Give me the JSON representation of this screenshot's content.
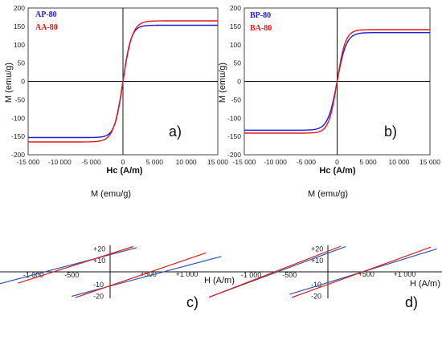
{
  "chart_data": [
    {
      "type": "line",
      "panel_label": "a)",
      "xlabel": "Hc (A/m)",
      "ylabel": "M (emu/g)",
      "xlim": [
        -15000,
        15000
      ],
      "ylim": [
        -200,
        200
      ],
      "xticks": [
        -15000,
        -10000,
        -5000,
        0,
        5000,
        10000,
        15000
      ],
      "xtick_labels": [
        "-15 000",
        "-10 000",
        "-5 000",
        "0",
        "5 000",
        "10 000",
        "15 000"
      ],
      "yticks": [
        -200,
        -150,
        -100,
        -50,
        0,
        50,
        100,
        150,
        200
      ],
      "ytick_labels": [
        "-200",
        "-150",
        "-100",
        "-50",
        "0",
        "50",
        "100",
        "150",
        "200"
      ],
      "legend_position": "top-left",
      "series": [
        {
          "name": "AP-80",
          "color": "#1f1fd6",
          "ms": 153,
          "scale": 1300,
          "x": [
            -15000,
            -10000,
            -5000,
            -3000,
            -1000,
            0,
            1000,
            3000,
            5000,
            10000,
            15000
          ],
          "y": [
            -151,
            -148,
            -138,
            -120,
            -62,
            0,
            62,
            120,
            138,
            148,
            151
          ]
        },
        {
          "name": "AA-80",
          "color": "#e41a1a",
          "ms": 165,
          "scale": 1500,
          "x": [
            -15000,
            -10000,
            -5000,
            -3000,
            -1000,
            0,
            1000,
            3000,
            5000,
            10000,
            15000
          ],
          "y": [
            -163,
            -159,
            -148,
            -128,
            -60,
            0,
            60,
            128,
            148,
            159,
            163
          ]
        }
      ]
    },
    {
      "type": "line",
      "panel_label": "b)",
      "xlabel": "Hc (A/m)",
      "ylabel": "M (emu/g)",
      "xlim": [
        -15000,
        15000
      ],
      "ylim": [
        -200,
        200
      ],
      "xticks": [
        -15000,
        -10000,
        -5000,
        0,
        5000,
        10000,
        15000
      ],
      "xtick_labels": [
        "-15 000",
        "-10 000",
        "-5 000",
        "0",
        "5 000",
        "10 000",
        "15 000"
      ],
      "yticks": [
        -200,
        -150,
        -100,
        -50,
        0,
        50,
        100,
        150,
        200
      ],
      "ytick_labels": [
        "-200",
        "-150",
        "-100",
        "-50",
        "0",
        "50",
        "100",
        "150",
        "200"
      ],
      "legend_position": "top-left",
      "series": [
        {
          "name": "BP-80",
          "color": "#1f1fd6",
          "ms": 133,
          "scale": 1500,
          "x": [
            -15000,
            -10000,
            -5000,
            -3000,
            -1000,
            0,
            1000,
            3000,
            5000,
            10000,
            15000
          ],
          "y": [
            -131,
            -128,
            -118,
            -100,
            -50,
            0,
            50,
            100,
            118,
            128,
            131
          ]
        },
        {
          "name": "BA-80",
          "color": "#e41a1a",
          "ms": 141,
          "scale": 1350,
          "x": [
            -15000,
            -10000,
            -5000,
            -3000,
            -1000,
            0,
            1000,
            3000,
            5000,
            10000,
            15000
          ],
          "y": [
            -139,
            -136,
            -127,
            -109,
            -58,
            0,
            58,
            109,
            127,
            136,
            139
          ]
        }
      ]
    },
    {
      "type": "line",
      "panel_label": "c)",
      "ylabel": "M (emu/g)",
      "xlabel": "H (A/m)",
      "xlim": [
        -1500,
        1500
      ],
      "ylim": [
        -22,
        22
      ],
      "xticks": [
        -1000,
        -500,
        500,
        1000
      ],
      "xtick_labels": [
        "-1 000",
        "-500",
        "+500",
        "+1 000"
      ],
      "yticks": [
        20,
        10,
        -10,
        -20
      ],
      "ytick_labels": [
        "+20",
        "+10",
        "-10",
        "-20"
      ],
      "series": [
        {
          "name": "",
          "color": "#2b57b5",
          "segments": [
            {
              "x": [
                -1450,
                350
              ],
              "y": [
                -10.3,
                20.4
              ]
            },
            {
              "x": [
                -500,
                1450
              ],
              "y": [
                -20.6,
                13.0
              ]
            }
          ]
        },
        {
          "name": "",
          "color": "#e41a1a",
          "segments": [
            {
              "x": [
                -1200,
                300
              ],
              "y": [
                -9.5,
                21.3
              ]
            },
            {
              "x": [
                -450,
                1250
              ],
              "y": [
                -21.7,
                16.0
              ]
            }
          ]
        }
      ]
    },
    {
      "type": "line",
      "panel_label": "d)",
      "ylabel": "M (emu/g)",
      "xlabel": "H (A/m)",
      "xlim": [
        -1500,
        1500
      ],
      "ylim": [
        -22,
        22
      ],
      "xticks": [
        -1000,
        -500,
        500,
        1000
      ],
      "xtick_labels": [
        "-1 000",
        "-500",
        "+500",
        "+1 000"
      ],
      "yticks": [
        20,
        10,
        -10,
        -20
      ],
      "ytick_labels": [
        "+20",
        "+10",
        "-10",
        "-20"
      ],
      "series": [
        {
          "name": "",
          "color": "#2b57b5",
          "segments": [
            {
              "x": [
                -1550,
                230
              ],
              "y": [
                -21.4,
                21.2
              ]
            },
            {
              "x": [
                -500,
                1420
              ],
              "y": [
                -19.0,
                19.3
              ]
            }
          ]
        },
        {
          "name": "",
          "color": "#e41a1a",
          "segments": [
            {
              "x": [
                -1550,
                170
              ],
              "y": [
                -21.4,
                21.6
              ]
            },
            {
              "x": [
                -470,
                1340
              ],
              "y": [
                -21.6,
                20.8
              ]
            }
          ]
        }
      ]
    }
  ]
}
